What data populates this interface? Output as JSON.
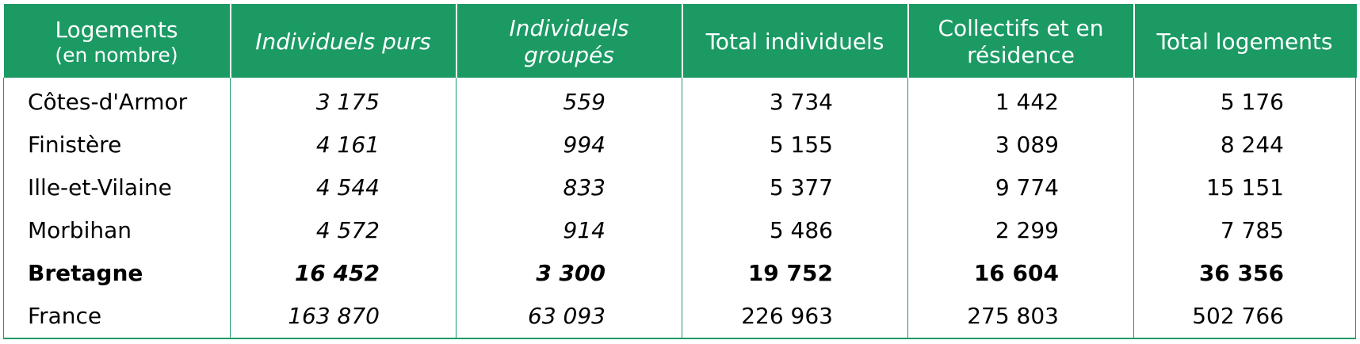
{
  "table": {
    "header": {
      "col0_line1": "Logements",
      "col0_line2": "(en nombre)",
      "col1": "Individuels purs",
      "col2_line1": "Individuels",
      "col2_line2": "groupés",
      "col3": "Total individuels",
      "col4_line1": "Collectifs et en",
      "col4_line2": "résidence",
      "col5": "Total logements"
    },
    "rows": [
      {
        "label": "Côtes-d'Armor",
        "individuels_purs": "3 175",
        "individuels_groupes": "559",
        "total_individuels": "3 734",
        "collectifs": "1 442",
        "total_logements": "5 176"
      },
      {
        "label": "Finistère",
        "individuels_purs": "4 161",
        "individuels_groupes": "994",
        "total_individuels": "5 155",
        "collectifs": "3 089",
        "total_logements": "8 244"
      },
      {
        "label": "Ille-et-Vilaine",
        "individuels_purs": "4 544",
        "individuels_groupes": "833",
        "total_individuels": "5 377",
        "collectifs": "9 774",
        "total_logements": "15 151"
      },
      {
        "label": "Morbihan",
        "individuels_purs": "4 572",
        "individuels_groupes": "914",
        "total_individuels": "5 486",
        "collectifs": "2 299",
        "total_logements": "7 785"
      },
      {
        "label": "Bretagne",
        "individuels_purs": "16 452",
        "individuels_groupes": "3 300",
        "total_individuels": "19 752",
        "collectifs": "16 604",
        "total_logements": "36 356"
      },
      {
        "label": "France",
        "individuels_purs": "163 870",
        "individuels_groupes": "63 093",
        "total_individuels": "226 963",
        "collectifs": "275 803",
        "total_logements": "502 766"
      }
    ]
  },
  "colors": {
    "header_bg": "#1b9a64",
    "header_text": "#ffffff",
    "border": "#1b9a64"
  }
}
